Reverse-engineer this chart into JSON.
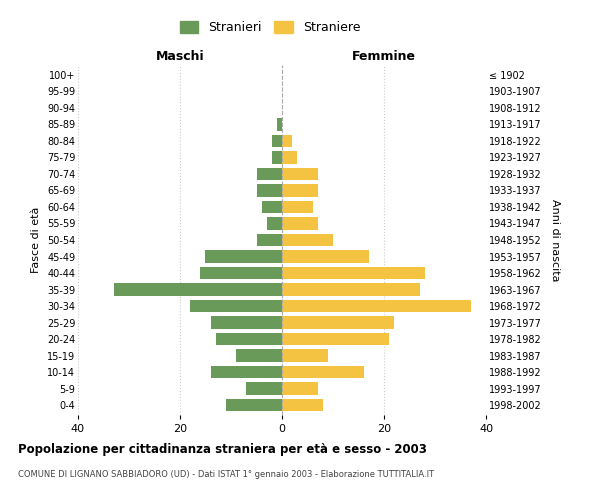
{
  "age_groups": [
    "0-4",
    "5-9",
    "10-14",
    "15-19",
    "20-24",
    "25-29",
    "30-34",
    "35-39",
    "40-44",
    "45-49",
    "50-54",
    "55-59",
    "60-64",
    "65-69",
    "70-74",
    "75-79",
    "80-84",
    "85-89",
    "90-94",
    "95-99",
    "100+"
  ],
  "birth_years": [
    "1998-2002",
    "1993-1997",
    "1988-1992",
    "1983-1987",
    "1978-1982",
    "1973-1977",
    "1968-1972",
    "1963-1967",
    "1958-1962",
    "1953-1957",
    "1948-1952",
    "1943-1947",
    "1938-1942",
    "1933-1937",
    "1928-1932",
    "1923-1927",
    "1918-1922",
    "1913-1917",
    "1908-1912",
    "1903-1907",
    "≤ 1902"
  ],
  "maschi": [
    11,
    7,
    14,
    9,
    13,
    14,
    18,
    33,
    16,
    15,
    5,
    3,
    4,
    5,
    5,
    2,
    2,
    1,
    0,
    0,
    0
  ],
  "femmine": [
    8,
    7,
    16,
    9,
    21,
    22,
    37,
    27,
    28,
    17,
    10,
    7,
    6,
    7,
    7,
    3,
    2,
    0,
    0,
    0,
    0
  ],
  "color_maschi": "#6a9a5a",
  "color_femmine": "#f5c342",
  "title": "Popolazione per cittadinanza straniera per età e sesso - 2003",
  "subtitle": "COMUNE DI LIGNANO SABBIADORO (UD) - Dati ISTAT 1° gennaio 2003 - Elaborazione TUTTITALIA.IT",
  "xlabel_left": "Maschi",
  "xlabel_right": "Femmine",
  "ylabel_left": "Fasce di età",
  "ylabel_right": "Anni di nascita",
  "legend_stranieri": "Stranieri",
  "legend_straniere": "Straniere",
  "xlim": 40,
  "background_color": "#ffffff",
  "grid_color": "#cccccc"
}
